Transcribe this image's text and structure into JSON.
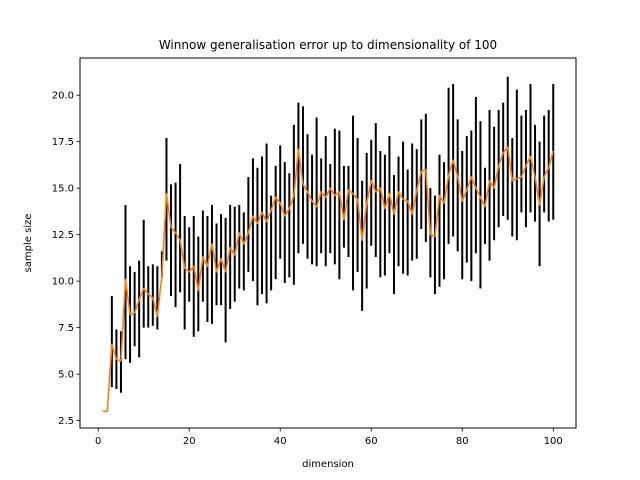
{
  "chart_data": {
    "type": "line",
    "title": "Winnow generalisation error up to dimensionality of 100",
    "xlabel": "dimension",
    "ylabel": "sample size",
    "xlim": [
      -4,
      105
    ],
    "ylim": [
      2.1,
      22
    ],
    "xticks": [
      0,
      20,
      40,
      60,
      80,
      100
    ],
    "yticks": [
      2.5,
      5.0,
      7.5,
      10.0,
      12.5,
      15.0,
      17.5,
      20.0
    ],
    "xtick_labels": [
      "0",
      "20",
      "40",
      "60",
      "80",
      "100"
    ],
    "ytick_labels": [
      "2.5",
      "5.0",
      "7.5",
      "10.0",
      "12.5",
      "15.0",
      "17.5",
      "20.0"
    ],
    "grid": false,
    "series": [
      {
        "color": "#ff7f0e",
        "errorbar_color": "#000000",
        "x": [
          1,
          2,
          3,
          4,
          5,
          6,
          7,
          8,
          9,
          10,
          11,
          12,
          13,
          14,
          15,
          16,
          17,
          18,
          19,
          20,
          21,
          22,
          23,
          24,
          25,
          26,
          27,
          28,
          29,
          30,
          31,
          32,
          33,
          34,
          35,
          36,
          37,
          38,
          39,
          40,
          41,
          42,
          43,
          44,
          45,
          46,
          47,
          48,
          49,
          50,
          51,
          52,
          53,
          54,
          55,
          56,
          57,
          58,
          59,
          60,
          61,
          62,
          63,
          64,
          65,
          66,
          67,
          68,
          69,
          70,
          71,
          72,
          73,
          74,
          75,
          76,
          77,
          78,
          79,
          80,
          81,
          82,
          83,
          84,
          85,
          86,
          87,
          88,
          89,
          90,
          91,
          92,
          93,
          94,
          95,
          96,
          97,
          98,
          99,
          100
        ],
        "y": [
          3.0,
          3.0,
          6.6,
          5.8,
          5.7,
          10.1,
          8.2,
          8.3,
          9.0,
          9.6,
          9.3,
          9.1,
          8.1,
          10.3,
          14.7,
          12.9,
          12.6,
          12.2,
          10.7,
          10.5,
          10.8,
          9.5,
          11.3,
          10.8,
          12.0,
          10.5,
          11.2,
          10.5,
          11.8,
          11.4,
          12.6,
          12.0,
          12.6,
          13.5,
          13.1,
          13.7,
          13.2,
          13.8,
          14.5,
          14.2,
          13.5,
          13.9,
          14.6,
          17.1,
          15.2,
          14.8,
          14.3,
          14.0,
          14.8,
          14.5,
          15.0,
          14.6,
          14.8,
          13.3,
          14.9,
          14.7,
          14.4,
          12.2,
          14.2,
          15.4,
          14.8,
          15.0,
          13.9,
          14.7,
          13.6,
          14.8,
          14.4,
          14.3,
          13.6,
          14.9,
          15.9,
          16.0,
          12.5,
          12.4,
          14.6,
          14.2,
          15.7,
          16.5,
          15.6,
          14.3,
          14.9,
          15.6,
          15.0,
          14.5,
          14.0,
          15.4,
          15.0,
          16.2,
          16.9,
          17.2,
          15.4,
          15.5,
          15.6,
          16.2,
          16.7,
          15.6,
          14.1,
          15.6,
          16.1,
          17.0
        ],
        "err_low": [
          3.0,
          3.0,
          4.3,
          4.2,
          4.0,
          5.8,
          5.6,
          6.5,
          5.9,
          7.5,
          7.5,
          7.6,
          7.4,
          10.2,
          11.1,
          9.2,
          8.6,
          9.4,
          7.4,
          8.9,
          7.0,
          7.3,
          8.9,
          7.8,
          7.7,
          8.7,
          8.7,
          6.7,
          8.5,
          8.9,
          9.6,
          9.5,
          10.5,
          10.0,
          8.7,
          9.3,
          8.8,
          9.5,
          10.1,
          11.2,
          9.9,
          10.2,
          9.8,
          11.5,
          12.0,
          11.2,
          10.9,
          10.8,
          11.5,
          10.8,
          11.5,
          10.9,
          10.1,
          11.8,
          11.3,
          9.5,
          10.5,
          8.4,
          9.6,
          11.9,
          11.3,
          10.2,
          10.3,
          11.5,
          9.3,
          10.8,
          10.4,
          10.3,
          11.1,
          11.2,
          12.8,
          12.1,
          10.2,
          9.3,
          9.7,
          10.1,
          12.0,
          12.4,
          11.6,
          10.1,
          11.0,
          10.0,
          11.5,
          9.6,
          12.0,
          11.1,
          12.2,
          12.9,
          13.5,
          13.3,
          12.4,
          12.2,
          13.7,
          12.9,
          13.7,
          13.2,
          10.8,
          13.7,
          13.2,
          13.3
        ],
        "err_high": [
          3.0,
          3.0,
          9.2,
          7.4,
          7.3,
          14.1,
          10.8,
          10.5,
          11.1,
          13.3,
          10.8,
          10.9,
          10.8,
          11.6,
          17.7,
          15.2,
          15.3,
          16.3,
          13.5,
          12.9,
          13.5,
          12.4,
          13.8,
          13.5,
          14.1,
          13.1,
          13.6,
          13.4,
          14.1,
          14.0,
          14.1,
          13.7,
          15.6,
          16.6,
          16.1,
          16.7,
          17.4,
          14.6,
          16.2,
          17.3,
          16.4,
          15.8,
          18.4,
          19.6,
          19.4,
          17.9,
          16.8,
          18.8,
          16.6,
          17.8,
          16.3,
          18.2,
          18.1,
          16.2,
          16.2,
          18.9,
          17.7,
          15.4,
          16.9,
          17.6,
          18.5,
          17.0,
          16.8,
          17.8,
          15.7,
          16.7,
          17.5,
          16.0,
          17.4,
          17.1,
          18.7,
          19.0,
          15.0,
          14.6,
          16.8,
          16.4,
          20.4,
          20.6,
          18.7,
          17.0,
          17.8,
          18.1,
          19.9,
          18.6,
          16.1,
          19.2,
          18.3,
          19.2,
          19.6,
          21.0,
          17.7,
          20.3,
          18.9,
          19.2,
          20.6,
          18.4,
          17.5,
          18.9,
          19.2,
          20.6
        ]
      }
    ]
  }
}
